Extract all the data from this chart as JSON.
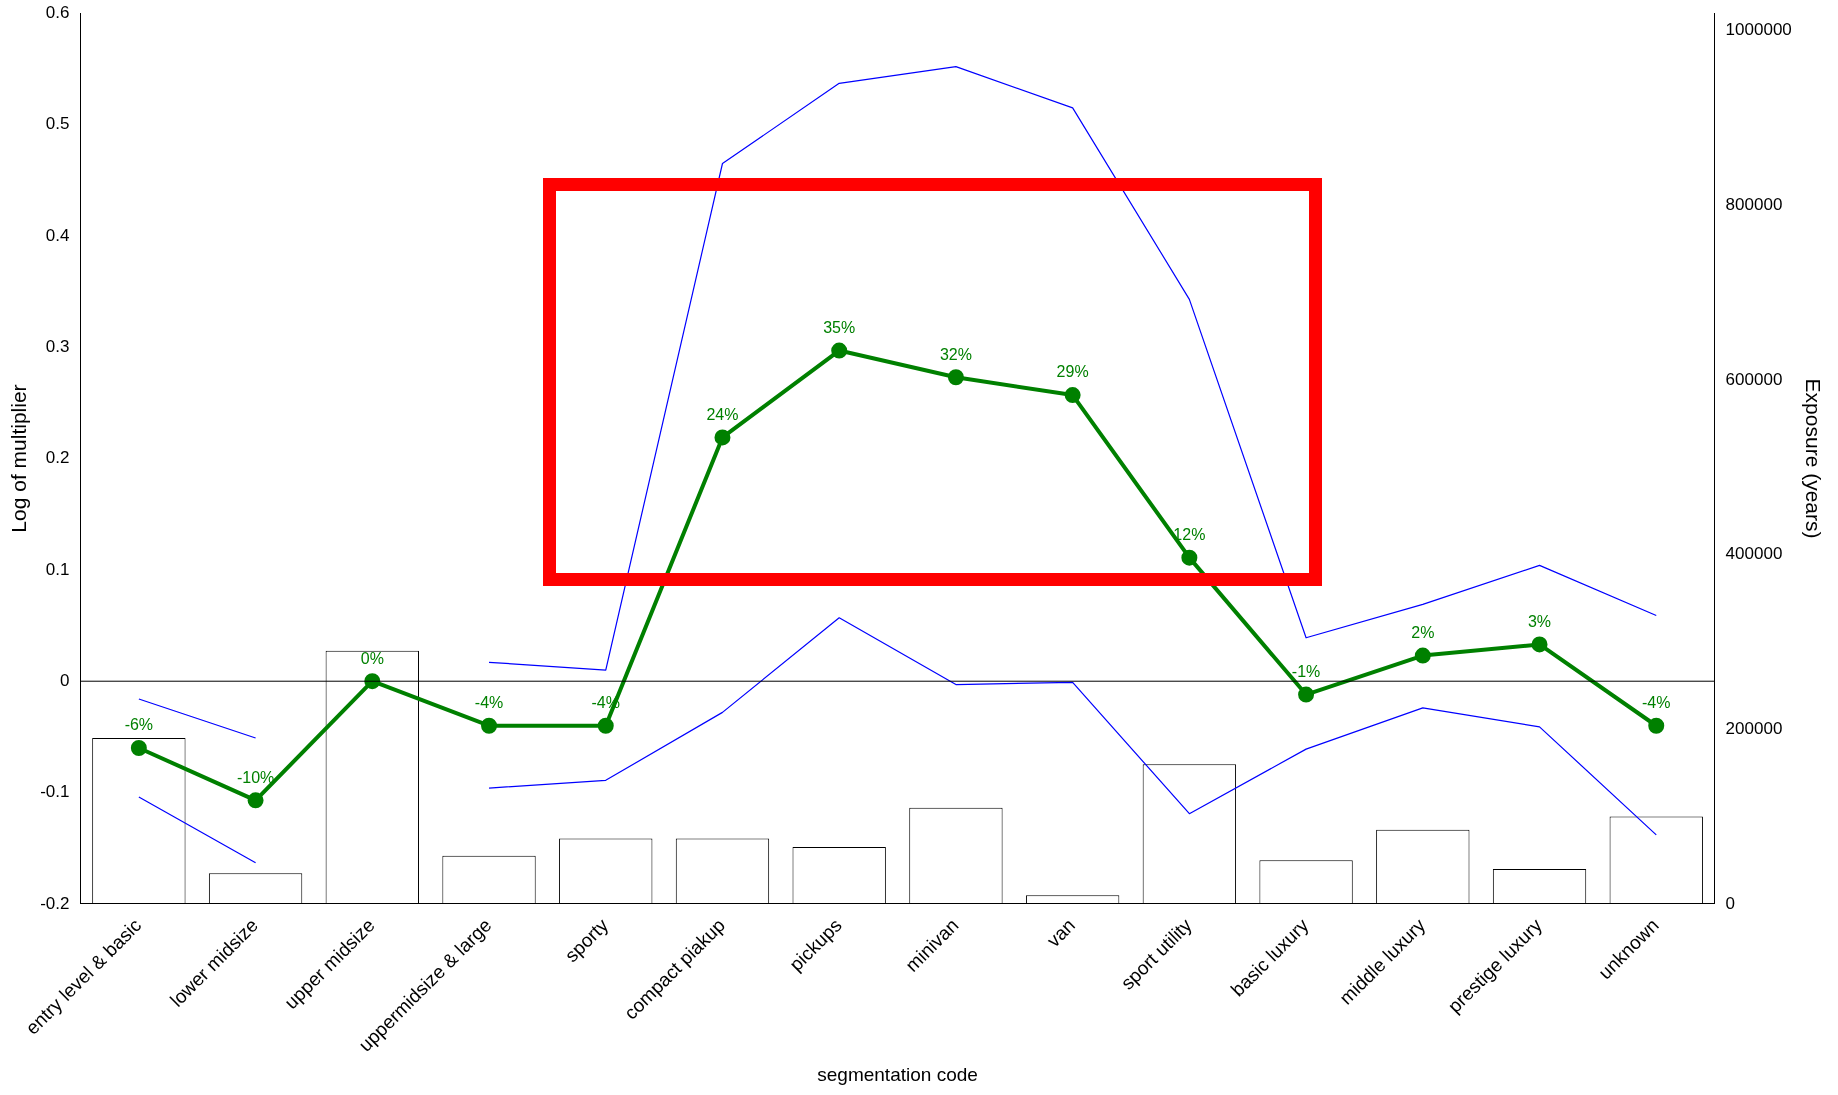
{
  "chart_data": {
    "type": "line",
    "xlabel": "segmentation code",
    "ylabel": "Log of multiplier",
    "y2label": "Exposure (years)",
    "categories": [
      "entry level & basic",
      "lower midsize",
      "upper midsize",
      "uppermidsize & large",
      "sporty",
      "compact piakup",
      "pickups",
      "minivan",
      "van",
      "sport utility",
      "basic luxury",
      "middle luxury",
      "prestige luxury",
      "unknown"
    ],
    "series": [
      {
        "type": "bar",
        "axis": "y2",
        "color": "#ffffff",
        "values": [
          190000,
          35000,
          290000,
          55000,
          75000,
          75000,
          65000,
          110000,
          10000,
          160000,
          50000,
          85000,
          40000,
          100000
        ]
      },
      {
        "color": "#0000ff",
        "marker": "none",
        "values": [
          -0.016,
          -0.051,
          null,
          0.017,
          0.01,
          0.465,
          0.537,
          0.552,
          0.515,
          0.343,
          0.039,
          0.069,
          0.104,
          0.059
        ]
      },
      {
        "color": "#0000ff",
        "marker": "none",
        "values": [
          -0.104,
          -0.163,
          null,
          -0.096,
          -0.089,
          -0.028,
          0.057,
          -0.003,
          -0.001,
          -0.119,
          -0.061,
          -0.024,
          -0.041,
          -0.138
        ]
      },
      {
        "color": "#008000",
        "marker": "circle",
        "values": [
          -0.06,
          -0.107,
          0,
          -0.04,
          -0.04,
          0.219,
          0.297,
          0.273,
          0.257,
          0.111,
          -0.012,
          0.023,
          0.033,
          -0.04
        ]
      }
    ],
    "annotations": [
      {
        "text": "-6%",
        "x": "entry level & basic",
        "y": -0.06
      },
      {
        "text": "-10%",
        "x": "lower midsize",
        "y": -0.107
      },
      {
        "text": "0%",
        "x": "upper midsize",
        "y": 0
      },
      {
        "text": "-4%",
        "x": "uppermidsize & large",
        "y": -0.04
      },
      {
        "text": "-4%",
        "x": "sporty",
        "y": -0.04
      },
      {
        "text": "24%",
        "x": "compact piakup",
        "y": 0.219
      },
      {
        "text": "35%",
        "x": "pickups",
        "y": 0.297
      },
      {
        "text": "32%",
        "x": "minivan",
        "y": 0.273
      },
      {
        "text": "29%",
        "x": "van",
        "y": 0.257
      },
      {
        "text": "12%",
        "x": "sport utility",
        "y": 0.111
      },
      {
        "text": "-1%",
        "x": "basic luxury",
        "y": -0.012
      },
      {
        "text": "2%",
        "x": "middle luxury",
        "y": 0.023
      },
      {
        "text": "3%",
        "x": "prestige luxury",
        "y": 0.033
      },
      {
        "text": "-4%",
        "x": "unknown",
        "y": -0.04
      }
    ],
    "ylim": [
      -0.2,
      0.6
    ],
    "yticks": [
      -0.2,
      -0.1,
      0,
      0.1,
      0.2,
      0.3,
      0.4,
      0.5,
      0.6
    ],
    "y2lim": [
      0,
      1020000
    ],
    "y2ticks": [
      0,
      200000,
      400000,
      600000,
      800000,
      1000000
    ],
    "ref_lines": [
      {
        "axis": "y",
        "value": 0,
        "color": "#000000"
      }
    ],
    "grid": false,
    "legend": false
  }
}
